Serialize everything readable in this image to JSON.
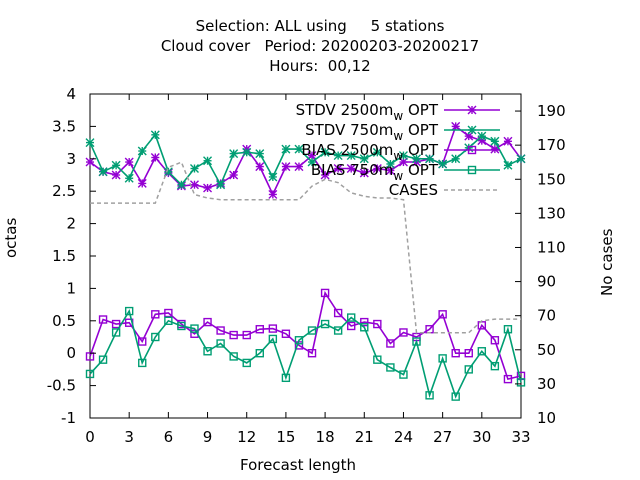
{
  "chart_data": {
    "type": "line",
    "title_lines": [
      "Selection: ALL using     5 stations",
      "Cloud cover   Period: 20200203-20200217",
      "Hours:  00,12"
    ],
    "xlabel": "Forecast length",
    "ylabel": "octas",
    "y2label": "No cases",
    "xlim": [
      0,
      33
    ],
    "ylim": [
      -1,
      4
    ],
    "y2lim": [
      10,
      200
    ],
    "x_ticks": [
      0,
      3,
      6,
      9,
      12,
      15,
      18,
      21,
      24,
      27,
      30,
      33
    ],
    "y_ticks": [
      -1,
      -0.5,
      0,
      0.5,
      1,
      1.5,
      2,
      2.5,
      3,
      3.5,
      4
    ],
    "y2_ticks": [
      10,
      30,
      50,
      70,
      90,
      110,
      130,
      150,
      170,
      190
    ],
    "legend_position": "top-right",
    "x": [
      0,
      1,
      2,
      3,
      4,
      5,
      6,
      7,
      8,
      9,
      10,
      11,
      12,
      13,
      14,
      15,
      16,
      17,
      18,
      19,
      20,
      21,
      22,
      23,
      24,
      25,
      26,
      27,
      28,
      29,
      30,
      31,
      32,
      33
    ],
    "series": [
      {
        "name": "STDV 2500m_w_OPT",
        "color": "#9400d3",
        "marker": "star",
        "axis": "y",
        "values": [
          2.95,
          2.8,
          2.75,
          2.95,
          2.62,
          3.02,
          2.78,
          2.58,
          2.6,
          2.55,
          2.62,
          2.75,
          3.15,
          2.88,
          2.45,
          2.88,
          2.88,
          3.05,
          2.75,
          2.85,
          2.85,
          2.78,
          2.85,
          2.82,
          2.95,
          2.95,
          3.0,
          2.92,
          3.5,
          3.35,
          3.28,
          3.15,
          3.27,
          3.0
        ]
      },
      {
        "name": "STDV 750m_w_OPT",
        "color": "#009e73",
        "marker": "star",
        "axis": "y",
        "values": [
          3.25,
          2.8,
          2.9,
          2.7,
          3.12,
          3.37,
          2.8,
          2.6,
          2.85,
          2.97,
          2.6,
          3.08,
          3.1,
          3.08,
          2.72,
          3.15,
          3.15,
          2.95,
          3.1,
          3.05,
          3.05,
          3.0,
          3.1,
          2.92,
          3.05,
          3.0,
          3.0,
          2.92,
          3.0,
          3.17,
          3.35,
          3.27,
          2.9,
          3.0
        ]
      },
      {
        "name": "BIAS 2500m_w_OPT",
        "color": "#9400d3",
        "marker": "square",
        "axis": "y",
        "values": [
          -0.05,
          0.52,
          0.45,
          0.47,
          0.18,
          0.6,
          0.62,
          0.45,
          0.3,
          0.48,
          0.35,
          0.28,
          0.28,
          0.37,
          0.38,
          0.3,
          0.12,
          0.0,
          0.93,
          0.62,
          0.42,
          0.48,
          0.45,
          0.15,
          0.32,
          0.25,
          0.37,
          0.6,
          0.0,
          0.0,
          0.43,
          0.2,
          -0.4,
          -0.35
        ]
      },
      {
        "name": "BIAS 750m_w_OPT",
        "color": "#009e73",
        "marker": "square",
        "axis": "y",
        "values": [
          -0.32,
          -0.1,
          0.32,
          0.65,
          -0.15,
          0.25,
          0.5,
          0.42,
          0.38,
          0.03,
          0.15,
          -0.05,
          -0.15,
          0.0,
          0.22,
          -0.38,
          0.2,
          0.35,
          0.45,
          0.35,
          0.55,
          0.4,
          -0.1,
          -0.22,
          -0.33,
          0.18,
          -0.65,
          -0.08,
          -0.67,
          -0.25,
          0.03,
          -0.2,
          0.37,
          -0.45
        ]
      },
      {
        "name": "CASES",
        "color": "#a0a0a0",
        "marker": "none",
        "dashed": true,
        "axis": "y2",
        "values": [
          136,
          136,
          136,
          136,
          136,
          136,
          157,
          160,
          141,
          139,
          138,
          138,
          138,
          138,
          138,
          138,
          138,
          146,
          150,
          148,
          142,
          140,
          139,
          139,
          138,
          60,
          60,
          60,
          60,
          60,
          67,
          68,
          68,
          68
        ]
      }
    ]
  }
}
